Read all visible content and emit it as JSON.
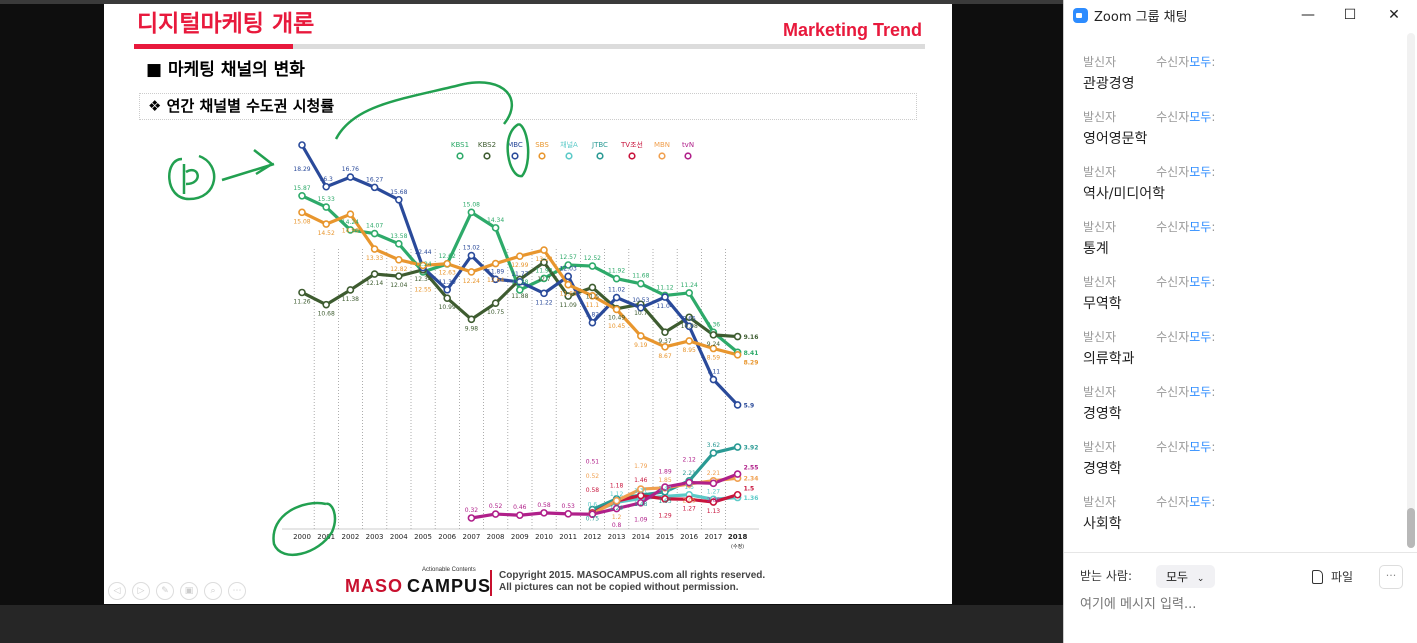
{
  "slide": {
    "title": "디지털마케팅 개론",
    "brand": "Marketing Trend",
    "heading": "■ 마케팅 채널의 변화",
    "subheading": "❖ 연간 채널별 수도권 시청률",
    "footer": {
      "logo_maso": "MASO",
      "logo_campus": "CAMPUS",
      "tagline": "Actionable Contents",
      "copyright_1": "Copyright 2015. MASOCAMPUS.com all rights reserved.",
      "copyright_2": "All pictures can not be copied without permission."
    },
    "nav_buttons": [
      "◁",
      "▷",
      "✎",
      "▣",
      "⌕",
      "⋯"
    ]
  },
  "chart_data": {
    "type": "line",
    "title": "연간 채널별 수도권 시청률",
    "x": [
      "2000",
      "2001",
      "2002",
      "2003",
      "2004",
      "2005",
      "2006",
      "2007",
      "2008",
      "2009",
      "2010",
      "2011",
      "2012",
      "2013",
      "2014",
      "2015",
      "2016",
      "2017",
      "2018"
    ],
    "x_note_2018": "(수정)",
    "legend_placement": "top",
    "series": [
      {
        "name": "KBS1",
        "color": "#2eaa6a",
        "group": "upper",
        "values": [
          15.87,
          15.33,
          14.24,
          14.07,
          13.58,
          12.24,
          12.62,
          15.08,
          14.34,
          11.38,
          11.93,
          12.57,
          12.52,
          11.92,
          11.68,
          11.12,
          11.24,
          9.36,
          8.41
        ]
      },
      {
        "name": "KBS2",
        "color": "#3e5c30",
        "group": "upper",
        "values": [
          11.26,
          10.68,
          11.38,
          12.14,
          12.04,
          12.34,
          10.99,
          9.98,
          10.75,
          11.88,
          12.7,
          11.09,
          11.5,
          10.49,
          10.7,
          9.37,
          10.08,
          9.24,
          9.16
        ]
      },
      {
        "name": "MBC",
        "color": "#2a4a9a",
        "group": "upper",
        "values": [
          18.29,
          16.3,
          16.76,
          16.27,
          15.68,
          12.44,
          11.39,
          13.02,
          11.89,
          11.77,
          11.22,
          12.03,
          9.82,
          11.02,
          10.53,
          11.04,
          9.65,
          7.11,
          5.9
        ]
      },
      {
        "name": "SBS",
        "color": "#e8962e",
        "group": "upper",
        "values": [
          15.08,
          14.52,
          14.99,
          13.33,
          12.82,
          12.55,
          12.63,
          12.24,
          12.64,
          12.99,
          13.28,
          11.63,
          11.1,
          10.45,
          9.19,
          8.67,
          8.95,
          8.59,
          8.29
        ]
      },
      {
        "name": "채널A",
        "color": "#5ccac8",
        "group": "lower",
        "values": [
          null,
          null,
          null,
          null,
          null,
          null,
          null,
          null,
          null,
          null,
          null,
          null,
          0.6,
          1.12,
          1.31,
          1.42,
          1.5,
          1.27,
          1.36
        ]
      },
      {
        "name": "JTBC",
        "color": "#2a9a94",
        "group": "lower",
        "values": [
          null,
          null,
          null,
          null,
          null,
          null,
          null,
          null,
          null,
          null,
          null,
          null,
          0.75,
          1.29,
          1.48,
          1.65,
          2.21,
          3.62,
          3.92
        ]
      },
      {
        "name": "TV조선",
        "color": "#c8143c",
        "group": "lower",
        "values": [
          null,
          null,
          null,
          null,
          null,
          null,
          null,
          null,
          null,
          null,
          null,
          null,
          0.58,
          1.18,
          1.46,
          1.29,
          1.27,
          1.13,
          1.5
        ]
      },
      {
        "name": "MBN",
        "color": "#f0a050",
        "group": "lower",
        "values": [
          null,
          null,
          null,
          null,
          null,
          null,
          null,
          null,
          null,
          null,
          null,
          null,
          0.52,
          1.2,
          1.79,
          1.85,
          2.05,
          2.21,
          2.34
        ]
      },
      {
        "name": "tvN",
        "color": "#b0208a",
        "group": "lower",
        "values": [
          null,
          null,
          null,
          null,
          null,
          null,
          null,
          0.32,
          0.52,
          0.46,
          0.58,
          0.53,
          0.51,
          0.8,
          1.09,
          1.89,
          2.12,
          2.08,
          2.55
        ]
      }
    ]
  },
  "chat": {
    "title": "Zoom 그룹 채팅",
    "window_buttons": {
      "minimize": "—",
      "maximize": "☐",
      "close": "✕"
    },
    "messages": [
      {
        "sender": "발신자",
        "to_label": "수신자",
        "to": "모두",
        "colon": ":",
        "text": "관광경영"
      },
      {
        "sender": "발신자",
        "to_label": "수신자",
        "to": "모두",
        "colon": ":",
        "text": "영어영문학"
      },
      {
        "sender": "발신자",
        "to_label": "수신자",
        "to": "모두",
        "colon": ":",
        "text": "역사/미디어학"
      },
      {
        "sender": "발신자",
        "to_label": "수신자",
        "to": "모두",
        "colon": ":",
        "text": "통계"
      },
      {
        "sender": "발신자",
        "to_label": "수신자",
        "to": "모두",
        "colon": ":",
        "text": "무역학"
      },
      {
        "sender": "발신자",
        "to_label": "수신자",
        "to": "모두",
        "colon": ":",
        "text": "의류학과"
      },
      {
        "sender": "발신자",
        "to_label": "수신자",
        "to": "모두",
        "colon": ":",
        "text": "경영학"
      },
      {
        "sender": "발신자",
        "to_label": "수신자",
        "to": "모두",
        "colon": ":",
        "text": "경영학"
      },
      {
        "sender": "발신자",
        "to_label": "수신자",
        "to": "모두",
        "colon": ":",
        "text": "사회학"
      }
    ],
    "recipient_label": "받는 사람:",
    "recipient_value": "모두",
    "file_label": "파일",
    "more_label": "···",
    "input_placeholder": "여기에 메시지 입력..."
  }
}
